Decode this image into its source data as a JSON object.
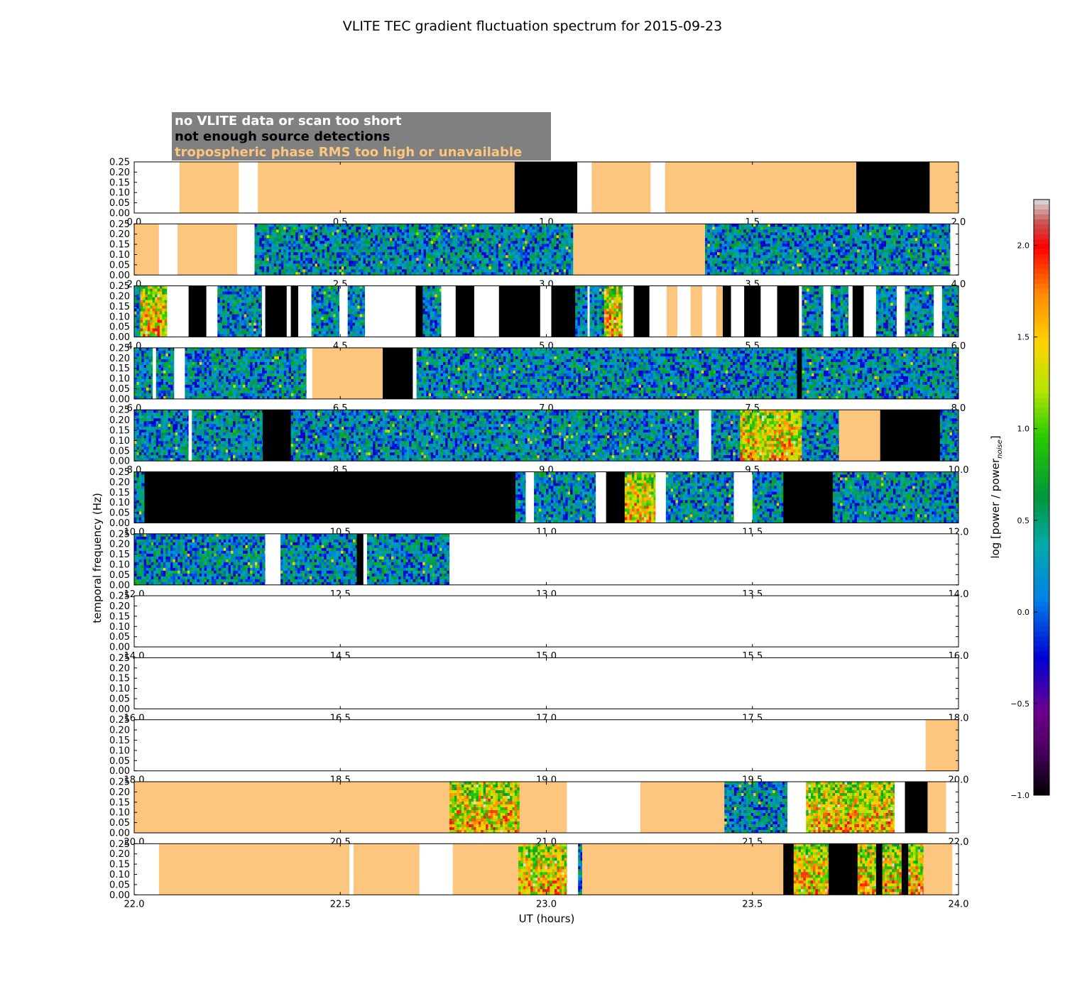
{
  "colors": {
    "no_data": "#ffffff",
    "few_detections": "#000000",
    "trop_rms": "#fdc67f",
    "legend_box": "#808080",
    "frame": "#000000"
  },
  "chart_data": {
    "type": "heatmap",
    "title": "VLITE TEC gradient fluctuation spectrum for 2015-09-23",
    "xlabel": "UT (hours)",
    "ylabel": "temporal frequency (Hz)",
    "colorbar_label": "log [power / power",
    "colorbar_label_sub": "noise",
    "colorbar_label_end": "]",
    "colorbar_range": [
      -1.0,
      2.25
    ],
    "colorbar_ticks": [
      "2.0",
      "1.5",
      "1.0",
      "0.5",
      "0.0",
      "−0.5",
      "−1.0"
    ],
    "colorbar_tick_values": [
      2.0,
      1.5,
      1.0,
      0.5,
      0.0,
      -0.5,
      -1.0
    ],
    "ylim": [
      0,
      0.25
    ],
    "y_ticks": [
      "0.25",
      "0.20",
      "0.15",
      "0.10",
      "0.05",
      "0.00"
    ],
    "y_tick_values": [
      0.25,
      0.2,
      0.15,
      0.1,
      0.05,
      0.0
    ],
    "legend": [
      {
        "label": "no VLITE data or scan too short",
        "category": "no_data"
      },
      {
        "label": "not enough source detections",
        "category": "few_detections"
      },
      {
        "label": "tropospheric phase RMS too high or unavailable",
        "category": "trop_rms"
      }
    ],
    "panels": [
      {
        "range": [
          0,
          2
        ],
        "x_ticks": [
          "0.0",
          "0.5",
          "1.0",
          "1.5",
          "2.0"
        ],
        "segments": [
          [
            0,
            0.11,
            "W"
          ],
          [
            0.11,
            0.254,
            "O"
          ],
          [
            0.254,
            0.3,
            "W"
          ],
          [
            0.3,
            0.923,
            "O"
          ],
          [
            0.923,
            1.075,
            "K"
          ],
          [
            1.075,
            1.11,
            "W"
          ],
          [
            1.11,
            1.253,
            "O"
          ],
          [
            1.253,
            1.288,
            "W"
          ],
          [
            1.288,
            1.752,
            "O"
          ],
          [
            1.752,
            1.93,
            "K"
          ],
          [
            1.93,
            2,
            "O"
          ]
        ]
      },
      {
        "range": [
          2,
          4
        ],
        "x_ticks": [
          "2.0",
          "2.5",
          "3.0",
          "3.5",
          "4.0"
        ],
        "segments": [
          [
            2,
            2.06,
            "O"
          ],
          [
            2.06,
            2.105,
            "W"
          ],
          [
            2.105,
            2.25,
            "O"
          ],
          [
            2.25,
            2.292,
            "W"
          ],
          [
            2.292,
            3.065,
            "S"
          ],
          [
            3.065,
            3.385,
            "O"
          ],
          [
            3.385,
            3.98,
            "S"
          ],
          [
            3.98,
            4,
            "W"
          ]
        ]
      },
      {
        "range": [
          4,
          6
        ],
        "x_ticks": [
          "4.0",
          "4.5",
          "5.0",
          "5.5",
          "6.0"
        ],
        "segments": [
          [
            4,
            4.015,
            "S"
          ],
          [
            4.015,
            4.08,
            "H"
          ],
          [
            4.08,
            4.132,
            "W"
          ],
          [
            4.132,
            4.175,
            "K"
          ],
          [
            4.175,
            4.202,
            "W"
          ],
          [
            4.202,
            4.31,
            "S"
          ],
          [
            4.31,
            4.318,
            "W"
          ],
          [
            4.318,
            4.37,
            "K"
          ],
          [
            4.37,
            4.38,
            "W"
          ],
          [
            4.38,
            4.398,
            "K"
          ],
          [
            4.398,
            4.43,
            "W"
          ],
          [
            4.43,
            4.498,
            "S"
          ],
          [
            4.498,
            4.518,
            "W"
          ],
          [
            4.518,
            4.56,
            "S"
          ],
          [
            4.56,
            4.683,
            "W"
          ],
          [
            4.683,
            4.7,
            "K"
          ],
          [
            4.7,
            4.745,
            "S"
          ],
          [
            4.745,
            4.78,
            "W"
          ],
          [
            4.78,
            4.825,
            "K"
          ],
          [
            4.825,
            4.885,
            "W"
          ],
          [
            4.885,
            4.94,
            "K"
          ],
          [
            4.94,
            4.985,
            "K"
          ],
          [
            4.985,
            5.012,
            "W"
          ],
          [
            5.012,
            5.07,
            "K"
          ],
          [
            5.07,
            5.1,
            "S"
          ],
          [
            5.1,
            5.105,
            "W"
          ],
          [
            5.105,
            5.14,
            "S"
          ],
          [
            5.14,
            5.185,
            "H"
          ],
          [
            5.185,
            5.212,
            "W"
          ],
          [
            5.212,
            5.25,
            "K"
          ],
          [
            5.25,
            5.292,
            "W"
          ],
          [
            5.292,
            5.318,
            "O"
          ],
          [
            5.318,
            5.35,
            "W"
          ],
          [
            5.35,
            5.378,
            "O"
          ],
          [
            5.378,
            5.412,
            "W"
          ],
          [
            5.412,
            5.428,
            "O"
          ],
          [
            5.428,
            5.448,
            "K"
          ],
          [
            5.448,
            5.48,
            "W"
          ],
          [
            5.48,
            5.52,
            "K"
          ],
          [
            5.52,
            5.56,
            "W"
          ],
          [
            5.56,
            5.613,
            "K"
          ],
          [
            5.613,
            5.62,
            "W"
          ],
          [
            5.62,
            5.672,
            "S"
          ],
          [
            5.672,
            5.69,
            "W"
          ],
          [
            5.69,
            5.733,
            "S"
          ],
          [
            5.733,
            5.743,
            "W"
          ],
          [
            5.743,
            5.77,
            "K"
          ],
          [
            5.77,
            5.8,
            "W"
          ],
          [
            5.8,
            5.85,
            "S"
          ],
          [
            5.85,
            5.87,
            "W"
          ],
          [
            5.87,
            5.94,
            "S"
          ],
          [
            5.94,
            5.96,
            "W"
          ],
          [
            5.96,
            6,
            "S"
          ]
        ]
      },
      {
        "range": [
          6,
          8
        ],
        "x_ticks": [
          "6.0",
          "6.5",
          "7.0",
          "7.5",
          "8.0"
        ],
        "segments": [
          [
            6,
            6.045,
            "S"
          ],
          [
            6.045,
            6.053,
            "W"
          ],
          [
            6.053,
            6.097,
            "S"
          ],
          [
            6.097,
            6.123,
            "W"
          ],
          [
            6.123,
            6.418,
            "S"
          ],
          [
            6.418,
            6.432,
            "W"
          ],
          [
            6.432,
            6.603,
            "O"
          ],
          [
            6.603,
            6.676,
            "K"
          ],
          [
            6.676,
            6.685,
            "W"
          ],
          [
            6.685,
            7.608,
            "S"
          ],
          [
            7.608,
            7.62,
            "K"
          ],
          [
            7.62,
            8,
            "S"
          ]
        ]
      },
      {
        "range": [
          8,
          10
        ],
        "x_ticks": [
          "8.0",
          "8.5",
          "9.0",
          "9.5",
          "10.0"
        ],
        "segments": [
          [
            8,
            8.132,
            "S"
          ],
          [
            8.132,
            8.14,
            "W"
          ],
          [
            8.14,
            8.312,
            "S"
          ],
          [
            8.312,
            8.38,
            "K"
          ],
          [
            8.38,
            9.37,
            "S"
          ],
          [
            9.37,
            9.4,
            "W"
          ],
          [
            9.4,
            9.47,
            "S"
          ],
          [
            9.47,
            9.62,
            "H"
          ],
          [
            9.62,
            9.71,
            "S"
          ],
          [
            9.71,
            9.81,
            "O"
          ],
          [
            9.81,
            9.955,
            "K"
          ],
          [
            9.955,
            10,
            "S"
          ]
        ]
      },
      {
        "range": [
          10,
          12
        ],
        "x_ticks": [
          "10.0",
          "10.5",
          "11.0",
          "11.5",
          "12.0"
        ],
        "segments": [
          [
            10,
            10.025,
            "S"
          ],
          [
            10.025,
            10.925,
            "K"
          ],
          [
            10.925,
            10.95,
            "S"
          ],
          [
            10.95,
            10.97,
            "W"
          ],
          [
            10.97,
            11.12,
            "S"
          ],
          [
            11.12,
            11.145,
            "W"
          ],
          [
            11.145,
            11.19,
            "K"
          ],
          [
            11.19,
            11.265,
            "H"
          ],
          [
            11.265,
            11.29,
            "W"
          ],
          [
            11.29,
            11.455,
            "S"
          ],
          [
            11.455,
            11.5,
            "W"
          ],
          [
            11.5,
            11.575,
            "S"
          ],
          [
            11.575,
            11.695,
            "K"
          ],
          [
            11.695,
            12,
            "S"
          ]
        ]
      },
      {
        "range": [
          12,
          14
        ],
        "x_ticks": [
          "12.0",
          "12.5",
          "13.0",
          "13.5",
          "14.0"
        ],
        "segments": [
          [
            12,
            12.318,
            "S"
          ],
          [
            12.318,
            12.355,
            "W"
          ],
          [
            12.355,
            12.54,
            "S"
          ],
          [
            12.54,
            12.556,
            "K"
          ],
          [
            12.556,
            12.565,
            "W"
          ],
          [
            12.565,
            12.765,
            "S"
          ],
          [
            12.765,
            14,
            "W"
          ]
        ]
      },
      {
        "range": [
          14,
          16
        ],
        "x_ticks": [
          "14.0",
          "14.5",
          "15.0",
          "15.5",
          "16.0"
        ],
        "segments": [
          [
            14,
            16,
            "W"
          ]
        ]
      },
      {
        "range": [
          16,
          18
        ],
        "x_ticks": [
          "16.0",
          "16.5",
          "17.0",
          "17.5",
          "18.0"
        ],
        "segments": [
          [
            16,
            18,
            "W"
          ]
        ]
      },
      {
        "range": [
          18,
          20
        ],
        "x_ticks": [
          "18.0",
          "18.5",
          "19.0",
          "19.5",
          "20.0"
        ],
        "segments": [
          [
            18,
            19.92,
            "W"
          ],
          [
            19.92,
            20,
            "O"
          ]
        ]
      },
      {
        "range": [
          20,
          22
        ],
        "x_ticks": [
          "20.0",
          "20.5",
          "21.0",
          "21.5",
          "22.0"
        ],
        "segments": [
          [
            20,
            20.765,
            "O"
          ],
          [
            20.765,
            20.935,
            "H"
          ],
          [
            20.935,
            21.05,
            "O"
          ],
          [
            21.05,
            21.228,
            "W"
          ],
          [
            21.228,
            21.432,
            "O"
          ],
          [
            21.432,
            21.585,
            "S"
          ],
          [
            21.585,
            21.63,
            "W"
          ],
          [
            21.63,
            21.845,
            "H"
          ],
          [
            21.845,
            21.87,
            "W"
          ],
          [
            21.87,
            21.925,
            "K"
          ],
          [
            21.925,
            21.97,
            "O"
          ],
          [
            21.97,
            22,
            "W"
          ]
        ]
      },
      {
        "range": [
          22,
          24
        ],
        "x_ticks": [
          "22.0",
          "22.5",
          "23.0",
          "23.5",
          "24.0"
        ],
        "segments": [
          [
            22,
            22.06,
            "W"
          ],
          [
            22.06,
            22.522,
            "O"
          ],
          [
            22.522,
            22.532,
            "W"
          ],
          [
            22.532,
            22.692,
            "O"
          ],
          [
            22.692,
            22.773,
            "W"
          ],
          [
            22.773,
            22.932,
            "O"
          ],
          [
            22.932,
            23.05,
            "H"
          ],
          [
            23.05,
            23.077,
            "W"
          ],
          [
            23.077,
            23.087,
            "S"
          ],
          [
            23.087,
            23.575,
            "O"
          ],
          [
            23.575,
            23.6,
            "K"
          ],
          [
            23.6,
            23.685,
            "H"
          ],
          [
            23.685,
            23.755,
            "K"
          ],
          [
            23.755,
            23.8,
            "H"
          ],
          [
            23.8,
            23.815,
            "K"
          ],
          [
            23.815,
            23.862,
            "H"
          ],
          [
            23.862,
            23.878,
            "K"
          ],
          [
            23.878,
            23.915,
            "H"
          ],
          [
            23.915,
            23.985,
            "O"
          ],
          [
            23.985,
            24,
            "W"
          ]
        ]
      }
    ]
  }
}
